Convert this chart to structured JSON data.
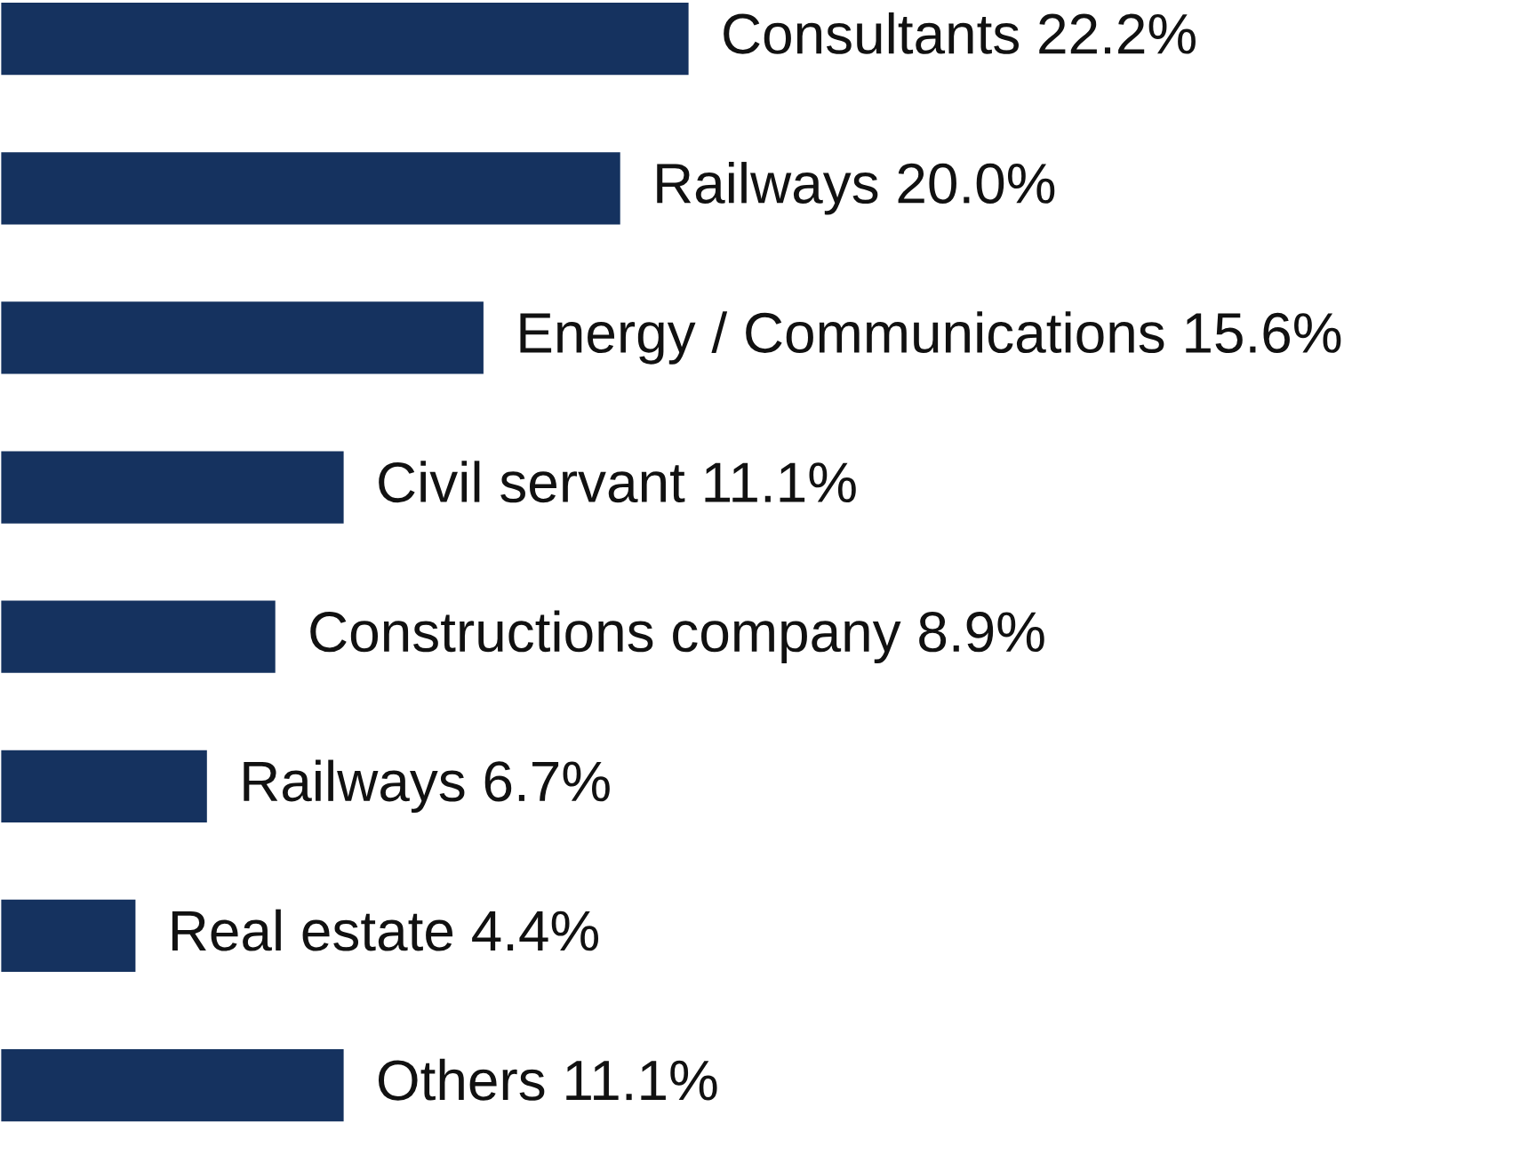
{
  "chart_data": {
    "type": "bar",
    "orientation": "horizontal",
    "categories": [
      null,
      null,
      null,
      null,
      null,
      null,
      null,
      null
    ],
    "values": [
      22.2,
      20.0,
      15.6,
      11.1,
      8.9,
      6.7,
      4.4,
      11.1
    ],
    "value_labels": [
      "Consultants 22.2%",
      "Railways 20.0%",
      "Energy / Communications 15.6%",
      "Civil servant 11.1%",
      "Constructions company 8.9%",
      "Railways 6.7%",
      "Real estate 4.4%",
      "Others 11.1%"
    ],
    "color": "#15325f"
  }
}
